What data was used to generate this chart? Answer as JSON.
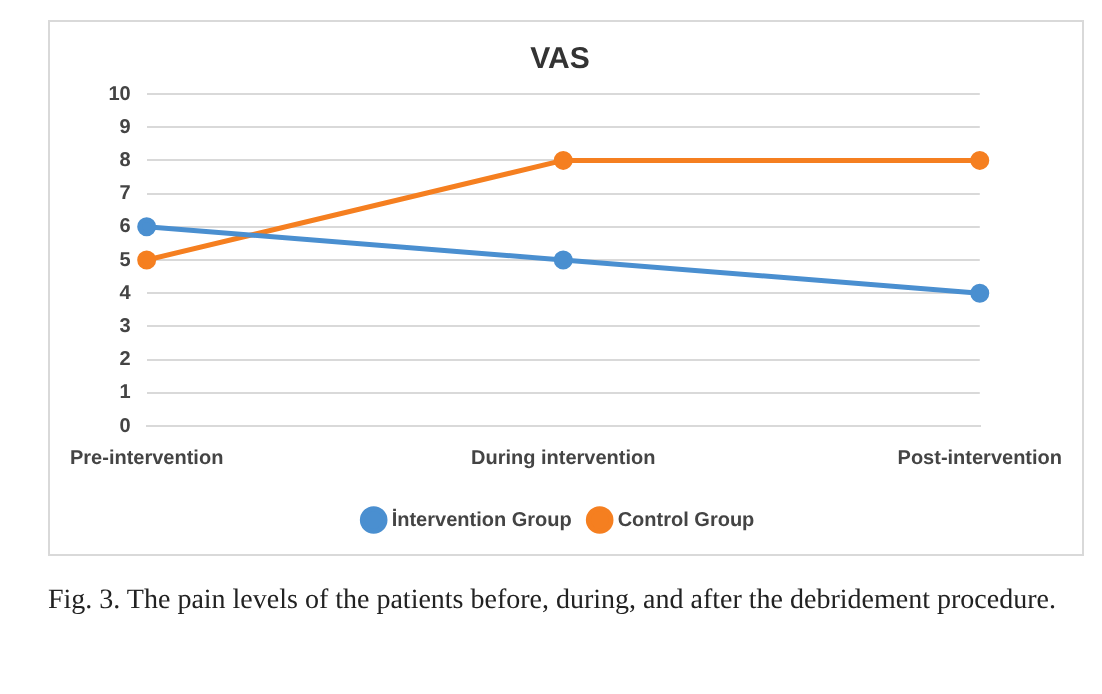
{
  "chart_data": {
    "type": "line",
    "title": "VAS",
    "categories": [
      "Pre-intervention",
      "During intervention",
      "Post-intervention"
    ],
    "series": [
      {
        "name": "İntervention Group",
        "color": "#4a8fd0",
        "values": [
          6,
          5,
          4
        ]
      },
      {
        "name": "Control Group",
        "color": "#f57f20",
        "values": [
          5,
          8,
          8
        ]
      }
    ],
    "ylim": [
      0,
      10
    ],
    "yticks": [
      0,
      1,
      2,
      3,
      4,
      5,
      6,
      7,
      8,
      9,
      10
    ],
    "grid": "y",
    "legend": "bottom",
    "marker": "circle",
    "annotations": [
      "Fig. 3. The pain levels of the patients before, during, and after the debridement procedure."
    ]
  }
}
